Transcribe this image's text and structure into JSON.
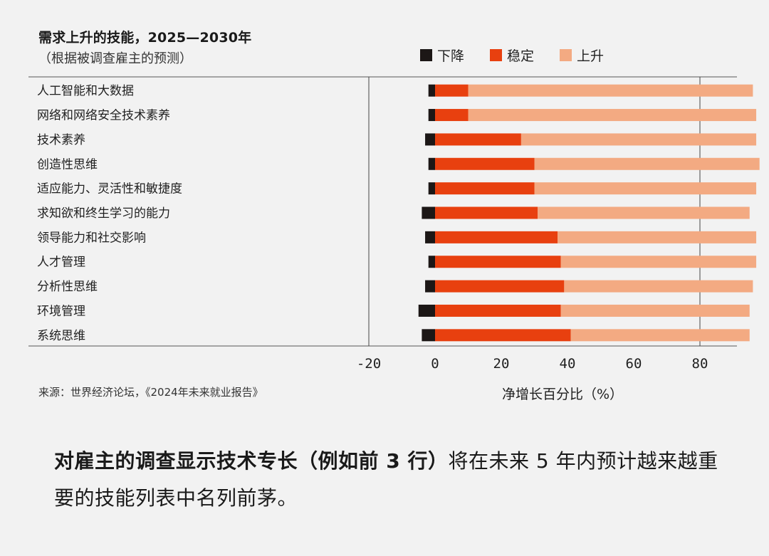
{
  "title": "需求上升的技能，2025—2030年",
  "subtitle": "（根据被调查雇主的预测）",
  "legend": [
    {
      "label": "下降",
      "color": "#1c1716"
    },
    {
      "label": "稳定",
      "color": "#e8400f"
    },
    {
      "label": "上升",
      "color": "#f3aa82"
    }
  ],
  "source": "来源：世界经济论坛，《2024年未来就业报告》",
  "caption": {
    "bold": "对雇主的调查显示技术专长（例如前 3 行）",
    "rest": "将在未来 5 年内预计越来越重要的技能列表中名列前茅。"
  },
  "chart_data": {
    "type": "bar",
    "orientation": "horizontal",
    "stacked": true,
    "title": "需求上升的技能，2025—2030年",
    "subtitle": "（根据被调查雇主的预测）",
    "xlabel": "净增长百分比（%）",
    "ylabel": "",
    "xlim": [
      -25,
      91
    ],
    "xticks": [
      -20,
      0,
      20,
      40,
      60,
      80
    ],
    "xtick_labels": [
      "-20",
      "0",
      "20",
      "40",
      "60",
      "80"
    ],
    "gridlines": [
      -20,
      80
    ],
    "legend_position": "top",
    "categories": [
      "人工智能和大数据",
      "网络和网络安全技术素养",
      "技术素养",
      "创造性思维",
      "适应能力、灵活性和敏捷度",
      "求知欲和终生学习的能力",
      "领导能力和社交影响",
      "人才管理",
      "分析性思维",
      "环境管理",
      "系统思维"
    ],
    "series": [
      {
        "name": "下降",
        "color": "#1c1716",
        "values": [
          -2,
          -2,
          -3,
          -2,
          -2,
          -4,
          -3,
          -2,
          -3,
          -5,
          -4
        ]
      },
      {
        "name": "稳定",
        "color": "#e8400f",
        "values": [
          10,
          10,
          26,
          30,
          30,
          31,
          37,
          38,
          39,
          38,
          41
        ]
      },
      {
        "name": "上升",
        "color": "#f3aa82",
        "values": [
          86,
          87,
          71,
          68,
          67,
          64,
          60,
          59,
          57,
          57,
          54
        ]
      }
    ]
  }
}
